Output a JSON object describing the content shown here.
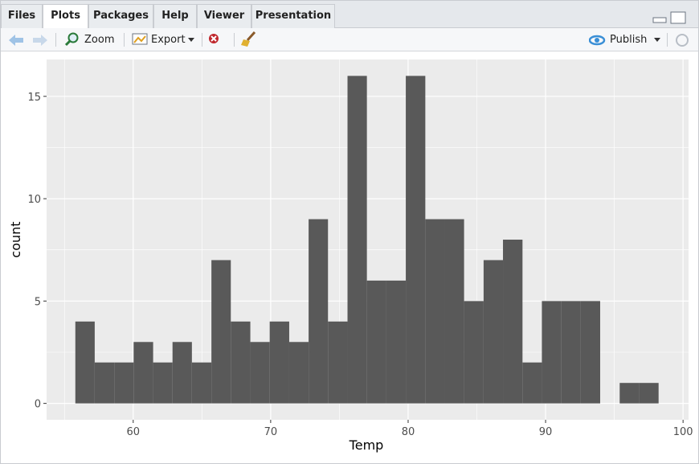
{
  "tabs": [
    "Files",
    "Plots",
    "Packages",
    "Help",
    "Viewer",
    "Presentation"
  ],
  "toolbar": {
    "zoom": "Zoom",
    "export": "Export",
    "publish": "Publish"
  },
  "chart_data": {
    "type": "histogram",
    "x_label": "Temp",
    "y_label": "count",
    "bins": [
      55.79,
      57.2,
      58.62,
      60.03,
      61.45,
      62.86,
      64.27,
      65.69,
      67.1,
      68.52,
      69.93,
      71.35,
      72.76,
      74.17,
      75.59,
      77.0,
      78.42,
      79.83,
      81.25,
      82.66,
      84.07,
      85.49,
      86.9,
      88.32,
      89.73,
      91.15,
      92.56,
      93.97,
      95.39,
      96.8,
      98.22
    ],
    "values": [
      4,
      2,
      2,
      3,
      2,
      3,
      2,
      7,
      4,
      3,
      4,
      3,
      9,
      4,
      16,
      6,
      6,
      16,
      9,
      9,
      5,
      7,
      8,
      2,
      5,
      5,
      5,
      0,
      1,
      1
    ],
    "color": "#595959",
    "xlim": [
      53.7,
      100.4
    ],
    "xticks": [
      60,
      70,
      80,
      90,
      100
    ],
    "ylim": [
      -0.8,
      16.8
    ],
    "yticks": [
      0,
      5,
      10,
      15
    ],
    "grid": true
  }
}
